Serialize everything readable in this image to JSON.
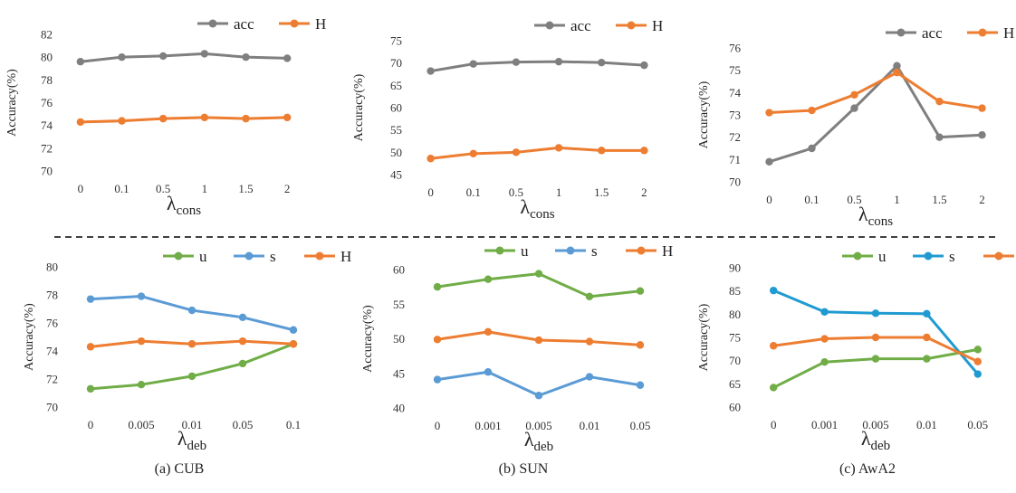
{
  "colors": {
    "acc": "#7f7f7f",
    "H": "#ed7d31",
    "u": "#70ad47",
    "s_blue": "#5b9bd5",
    "s_teal": "#1f9bd1",
    "grid": "#d9d9d9",
    "separator": "#000000"
  },
  "captions": [
    "(a) CUB",
    "(b) SUN",
    "(c) AwA2"
  ],
  "chart_data": [
    {
      "id": "cub-cons",
      "type": "line",
      "ylabel": "Accuracy(%)",
      "xlabel": "λ",
      "xlabel_sub": "cons",
      "categories": [
        "0",
        "0.1",
        "0.5",
        "1",
        "1.5",
        "2"
      ],
      "yticks": [
        70,
        72,
        74,
        76,
        78,
        80,
        82
      ],
      "ylim": [
        70,
        82
      ],
      "series": [
        {
          "name": "acc",
          "color_key": "acc",
          "values": [
            79.6,
            80.0,
            80.1,
            80.3,
            80.0,
            79.9
          ]
        },
        {
          "name": "H",
          "color_key": "H",
          "values": [
            74.3,
            74.4,
            74.6,
            74.7,
            74.6,
            74.7
          ]
        }
      ]
    },
    {
      "id": "sun-cons",
      "type": "line",
      "ylabel": "Accuracy(%)",
      "xlabel": "λ",
      "xlabel_sub": "cons",
      "categories": [
        "0",
        "0.1",
        "0.5",
        "1",
        "1.5",
        "2"
      ],
      "yticks": [
        45,
        50,
        55,
        60,
        65,
        70,
        75
      ],
      "ylim": [
        45,
        75
      ],
      "series": [
        {
          "name": "acc",
          "color_key": "acc",
          "values": [
            68.2,
            69.8,
            70.2,
            70.3,
            70.1,
            69.5
          ]
        },
        {
          "name": "H",
          "color_key": "H",
          "values": [
            48.6,
            49.7,
            50.0,
            51.0,
            50.4,
            50.4
          ]
        }
      ]
    },
    {
      "id": "awa2-cons",
      "type": "line",
      "ylabel": "Accuracy(%)",
      "xlabel": "λ",
      "xlabel_sub": "cons",
      "categories": [
        "0",
        "0.1",
        "0.5",
        "1",
        "1.5",
        "2"
      ],
      "yticks": [
        70,
        71,
        72,
        73,
        74,
        75,
        76
      ],
      "ylim": [
        70,
        76
      ],
      "series": [
        {
          "name": "acc",
          "color_key": "acc",
          "values": [
            70.9,
            71.5,
            73.3,
            75.2,
            72.0,
            72.1
          ]
        },
        {
          "name": "H",
          "color_key": "H",
          "values": [
            73.1,
            73.2,
            73.9,
            74.9,
            73.6,
            73.3
          ]
        }
      ]
    },
    {
      "id": "cub-deb",
      "type": "line",
      "ylabel": "Accuracy(%)",
      "xlabel": "λ",
      "xlabel_sub": "deb",
      "categories": [
        "0",
        "0.005",
        "0.01",
        "0.05",
        "0.1"
      ],
      "yticks": [
        70,
        72,
        74,
        76,
        78,
        80
      ],
      "ylim": [
        70,
        80
      ],
      "series": [
        {
          "name": "u",
          "color_key": "u",
          "values": [
            71.3,
            71.6,
            72.2,
            73.1,
            74.5
          ]
        },
        {
          "name": "s",
          "color_key": "s_blue",
          "values": [
            77.7,
            77.9,
            76.9,
            76.4,
            75.5
          ]
        },
        {
          "name": "H",
          "color_key": "H",
          "values": [
            74.3,
            74.7,
            74.5,
            74.7,
            74.5
          ]
        }
      ]
    },
    {
      "id": "sun-deb",
      "type": "line",
      "ylabel": "Accuracy(%)",
      "xlabel": "λ",
      "xlabel_sub": "deb",
      "categories": [
        "0",
        "0.001",
        "0.005",
        "0.01",
        "0.05"
      ],
      "yticks": [
        40,
        45,
        50,
        55,
        60
      ],
      "ylim": [
        40,
        60
      ],
      "series": [
        {
          "name": "u",
          "color_key": "u",
          "values": [
            57.5,
            58.6,
            59.4,
            56.1,
            56.9
          ]
        },
        {
          "name": "s",
          "color_key": "s_blue",
          "values": [
            44.1,
            45.2,
            41.8,
            44.5,
            43.3
          ]
        },
        {
          "name": "H",
          "color_key": "H",
          "values": [
            49.9,
            51.0,
            49.8,
            49.6,
            49.1
          ]
        }
      ]
    },
    {
      "id": "awa2-deb",
      "type": "line",
      "ylabel": "Accuracy(%)",
      "xlabel": "λ",
      "xlabel_sub": "deb",
      "categories": [
        "0",
        "0.001",
        "0.005",
        "0.01",
        "0.05"
      ],
      "yticks": [
        60,
        65,
        70,
        75,
        80,
        85,
        90
      ],
      "ylim": [
        60,
        90
      ],
      "series": [
        {
          "name": "u",
          "color_key": "u",
          "values": [
            64.2,
            69.7,
            70.4,
            70.4,
            72.4
          ]
        },
        {
          "name": "s",
          "color_key": "s_teal",
          "values": [
            85.1,
            80.5,
            80.2,
            80.1,
            67.1
          ]
        },
        {
          "name": "H",
          "color_key": "H",
          "values": [
            73.2,
            74.7,
            75.0,
            75.0,
            69.8
          ]
        }
      ]
    }
  ]
}
